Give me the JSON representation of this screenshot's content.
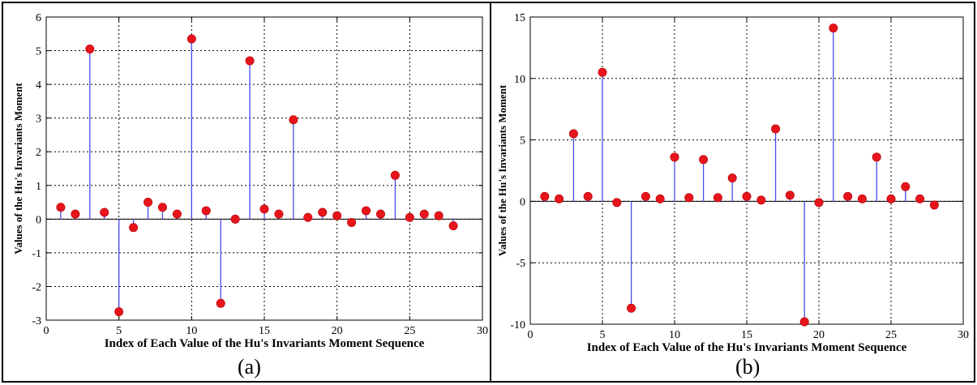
{
  "colors": {
    "stem": "#4a4af0",
    "marker": "#e8141c",
    "grid": "#000000",
    "axis": "#000000"
  },
  "chart_data": [
    {
      "type": "stem",
      "caption": "(a)",
      "xlabel": "Index of Each Value of the Hu's Invariants Moment Sequence",
      "ylabel": "Values of the Hu's Invariants Moment",
      "xlim": [
        0,
        30
      ],
      "ylim": [
        -3,
        6
      ],
      "xticks": [
        0,
        5,
        10,
        15,
        20,
        25,
        30
      ],
      "yticks": [
        -3,
        -2,
        -1,
        0,
        1,
        2,
        3,
        4,
        5,
        6
      ],
      "grid": true,
      "x": [
        1,
        2,
        3,
        4,
        5,
        6,
        7,
        8,
        9,
        10,
        11,
        12,
        13,
        14,
        15,
        16,
        17,
        18,
        19,
        20,
        21,
        22,
        23,
        24,
        25,
        26,
        27,
        28
      ],
      "values": [
        0.35,
        0.15,
        5.05,
        0.2,
        -2.75,
        -0.25,
        0.5,
        0.35,
        0.15,
        5.35,
        0.25,
        -2.5,
        0.0,
        4.7,
        0.3,
        0.15,
        2.95,
        0.05,
        0.2,
        0.1,
        -0.1,
        0.25,
        0.15,
        1.3,
        0.05,
        0.15,
        0.1,
        -0.2
      ]
    },
    {
      "type": "stem",
      "caption": "(b)",
      "xlabel": "Index of Each Value of the Hu's Invariants Moment Sequence",
      "ylabel": "Values of the Hu's Invariants Moment",
      "xlim": [
        0,
        30
      ],
      "ylim": [
        -10,
        15
      ],
      "xticks": [
        0,
        5,
        10,
        15,
        20,
        25,
        30
      ],
      "yticks": [
        -10,
        -5,
        0,
        5,
        10,
        15
      ],
      "grid": true,
      "x": [
        1,
        2,
        3,
        4,
        5,
        6,
        7,
        8,
        9,
        10,
        11,
        12,
        13,
        14,
        15,
        16,
        17,
        18,
        19,
        20,
        21,
        22,
        23,
        24,
        25,
        26,
        27,
        28
      ],
      "values": [
        0.4,
        0.2,
        5.5,
        0.4,
        10.5,
        -0.1,
        -8.7,
        0.4,
        0.2,
        3.6,
        0.3,
        3.4,
        0.3,
        1.9,
        0.4,
        0.1,
        5.9,
        0.5,
        -9.8,
        -0.1,
        14.1,
        0.4,
        0.2,
        3.6,
        0.2,
        1.2,
        0.2,
        -0.3
      ]
    }
  ]
}
